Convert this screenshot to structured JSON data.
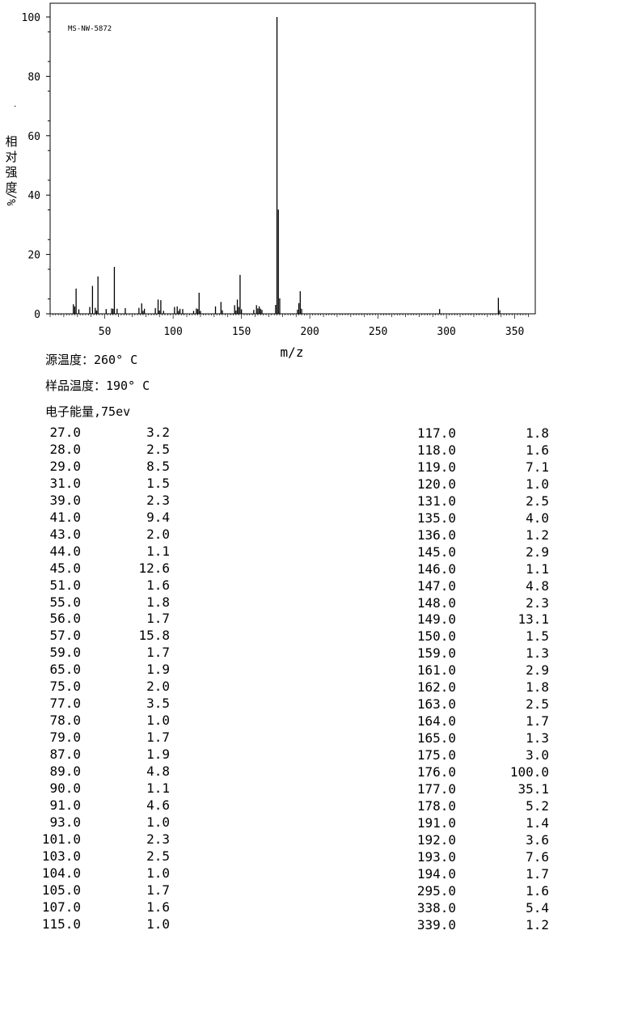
{
  "chart_data": {
    "type": "bar",
    "sample_id": "MS-NW-5872",
    "xlabel": "m/z",
    "ylabel": "相对强度 %/",
    "xlim": [
      10,
      365
    ],
    "ylim": [
      0,
      100
    ],
    "x_ticks": [
      50,
      100,
      150,
      200,
      250,
      300,
      350
    ],
    "y_ticks": [
      0,
      20,
      40,
      60,
      80,
      100
    ],
    "peaks": [
      {
        "mz": 27,
        "abundance": 3.2
      },
      {
        "mz": 28,
        "abundance": 2.5
      },
      {
        "mz": 29,
        "abundance": 8.5
      },
      {
        "mz": 31,
        "abundance": 1.5
      },
      {
        "mz": 39,
        "abundance": 2.3
      },
      {
        "mz": 41,
        "abundance": 9.4
      },
      {
        "mz": 43,
        "abundance": 2.0
      },
      {
        "mz": 44,
        "abundance": 1.1
      },
      {
        "mz": 45,
        "abundance": 12.6
      },
      {
        "mz": 51,
        "abundance": 1.6
      },
      {
        "mz": 55,
        "abundance": 1.8
      },
      {
        "mz": 56,
        "abundance": 1.7
      },
      {
        "mz": 57,
        "abundance": 15.8
      },
      {
        "mz": 59,
        "abundance": 1.7
      },
      {
        "mz": 65,
        "abundance": 1.9
      },
      {
        "mz": 75,
        "abundance": 2.0
      },
      {
        "mz": 77,
        "abundance": 3.5
      },
      {
        "mz": 78,
        "abundance": 1.0
      },
      {
        "mz": 79,
        "abundance": 1.7
      },
      {
        "mz": 87,
        "abundance": 1.9
      },
      {
        "mz": 89,
        "abundance": 4.8
      },
      {
        "mz": 90,
        "abundance": 1.1
      },
      {
        "mz": 91,
        "abundance": 4.6
      },
      {
        "mz": 93,
        "abundance": 1.0
      },
      {
        "mz": 101,
        "abundance": 2.3
      },
      {
        "mz": 103,
        "abundance": 2.5
      },
      {
        "mz": 104,
        "abundance": 1.0
      },
      {
        "mz": 105,
        "abundance": 1.7
      },
      {
        "mz": 107,
        "abundance": 1.6
      },
      {
        "mz": 115,
        "abundance": 1.0
      },
      {
        "mz": 117,
        "abundance": 1.8
      },
      {
        "mz": 118,
        "abundance": 1.6
      },
      {
        "mz": 119,
        "abundance": 7.1
      },
      {
        "mz": 120,
        "abundance": 1.0
      },
      {
        "mz": 131,
        "abundance": 2.5
      },
      {
        "mz": 135,
        "abundance": 4.0
      },
      {
        "mz": 136,
        "abundance": 1.2
      },
      {
        "mz": 145,
        "abundance": 2.9
      },
      {
        "mz": 146,
        "abundance": 1.1
      },
      {
        "mz": 147,
        "abundance": 4.8
      },
      {
        "mz": 148,
        "abundance": 2.3
      },
      {
        "mz": 149,
        "abundance": 13.1
      },
      {
        "mz": 150,
        "abundance": 1.5
      },
      {
        "mz": 159,
        "abundance": 1.3
      },
      {
        "mz": 161,
        "abundance": 2.9
      },
      {
        "mz": 162,
        "abundance": 1.8
      },
      {
        "mz": 163,
        "abundance": 2.5
      },
      {
        "mz": 164,
        "abundance": 1.7
      },
      {
        "mz": 165,
        "abundance": 1.3
      },
      {
        "mz": 175,
        "abundance": 3.0
      },
      {
        "mz": 176,
        "abundance": 100.0
      },
      {
        "mz": 177,
        "abundance": 35.1
      },
      {
        "mz": 178,
        "abundance": 5.2
      },
      {
        "mz": 191,
        "abundance": 1.4
      },
      {
        "mz": 192,
        "abundance": 3.6
      },
      {
        "mz": 193,
        "abundance": 7.6
      },
      {
        "mz": 194,
        "abundance": 1.7
      },
      {
        "mz": 295,
        "abundance": 1.6
      },
      {
        "mz": 338,
        "abundance": 5.4
      },
      {
        "mz": 339,
        "abundance": 1.2
      }
    ]
  },
  "info": {
    "source_temp": "源温度：260° C",
    "sample_temp": "样品温度：190° C",
    "electron_energy": "电子能量,75ev"
  },
  "table": {
    "left": [
      [
        "27.0",
        "3.2"
      ],
      [
        "28.0",
        "2.5"
      ],
      [
        "29.0",
        "8.5"
      ],
      [
        "31.0",
        "1.5"
      ],
      [
        "39.0",
        "2.3"
      ],
      [
        "41.0",
        "9.4"
      ],
      [
        "43.0",
        "2.0"
      ],
      [
        "44.0",
        "1.1"
      ],
      [
        "45.0",
        "12.6"
      ],
      [
        "51.0",
        "1.6"
      ],
      [
        "55.0",
        "1.8"
      ],
      [
        "56.0",
        "1.7"
      ],
      [
        "57.0",
        "15.8"
      ],
      [
        "59.0",
        "1.7"
      ],
      [
        "65.0",
        "1.9"
      ],
      [
        "75.0",
        "2.0"
      ],
      [
        "77.0",
        "3.5"
      ],
      [
        "78.0",
        "1.0"
      ],
      [
        "79.0",
        "1.7"
      ],
      [
        "87.0",
        "1.9"
      ],
      [
        "89.0",
        "4.8"
      ],
      [
        "90.0",
        "1.1"
      ],
      [
        "91.0",
        "4.6"
      ],
      [
        "93.0",
        "1.0"
      ],
      [
        "101.0",
        "2.3"
      ],
      [
        "103.0",
        "2.5"
      ],
      [
        "104.0",
        "1.0"
      ],
      [
        "105.0",
        "1.7"
      ],
      [
        "107.0",
        "1.6"
      ],
      [
        "115.0",
        "1.0"
      ]
    ],
    "right": [
      [
        "117.0",
        "1.8"
      ],
      [
        "118.0",
        "1.6"
      ],
      [
        "119.0",
        "7.1"
      ],
      [
        "120.0",
        "1.0"
      ],
      [
        "131.0",
        "2.5"
      ],
      [
        "135.0",
        "4.0"
      ],
      [
        "136.0",
        "1.2"
      ],
      [
        "145.0",
        "2.9"
      ],
      [
        "146.0",
        "1.1"
      ],
      [
        "147.0",
        "4.8"
      ],
      [
        "148.0",
        "2.3"
      ],
      [
        "149.0",
        "13.1"
      ],
      [
        "150.0",
        "1.5"
      ],
      [
        "159.0",
        "1.3"
      ],
      [
        "161.0",
        "2.9"
      ],
      [
        "162.0",
        "1.8"
      ],
      [
        "163.0",
        "2.5"
      ],
      [
        "164.0",
        "1.7"
      ],
      [
        "165.0",
        "1.3"
      ],
      [
        "175.0",
        "3.0"
      ],
      [
        "176.0",
        "100.0"
      ],
      [
        "177.0",
        "35.1"
      ],
      [
        "178.0",
        "5.2"
      ],
      [
        "191.0",
        "1.4"
      ],
      [
        "192.0",
        "3.6"
      ],
      [
        "193.0",
        "7.6"
      ],
      [
        "194.0",
        "1.7"
      ],
      [
        "295.0",
        "1.6"
      ],
      [
        "338.0",
        "5.4"
      ],
      [
        "339.0",
        "1.2"
      ]
    ]
  }
}
